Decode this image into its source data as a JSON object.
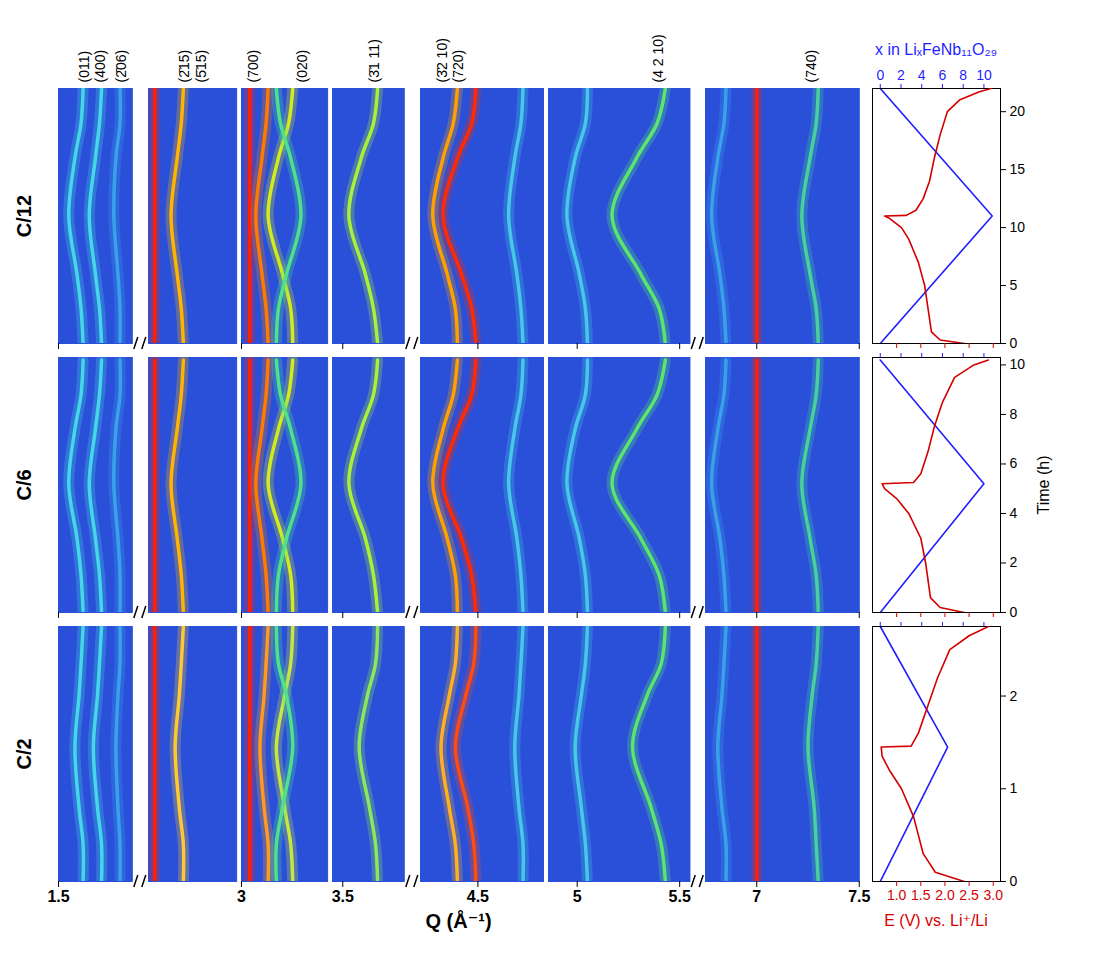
{
  "chart_data": {
    "type": "heatmap_traces",
    "xlabel": "Q (Å⁻¹)",
    "x_segments": [
      {
        "xlim": [
          1.5,
          1.86
        ],
        "xticks": [
          1.5
        ]
      },
      {
        "xlim": [
          2.55,
          2.98
        ],
        "xticks": []
      },
      {
        "xlim": [
          3.0,
          3.42
        ],
        "xticks": [
          3
        ]
      },
      {
        "xlim": [
          3.45,
          3.8
        ],
        "xticks": [
          3.5
        ]
      },
      {
        "xlim": [
          4.22,
          4.82
        ],
        "xticks": [
          4.5
        ]
      },
      {
        "xlim": [
          4.86,
          5.55
        ],
        "xticks": [
          5,
          5.5
        ]
      },
      {
        "xlim": [
          6.75,
          7.5
        ],
        "xticks": [
          7,
          7.5
        ]
      }
    ],
    "peak_labels": [
      {
        "label": "(011)",
        "q": 1.6
      },
      {
        "label": "(400)",
        "q": 1.68
      },
      {
        "label": "(2̄06)",
        "q": 1.78
      },
      {
        "label": "(2̄15)",
        "q": 2.7
      },
      {
        "label": "(5̄15)",
        "q": 2.78
      },
      {
        "label": "(700)",
        "q": 3.03
      },
      {
        "label": "(020)",
        "q": 3.27
      },
      {
        "label": "(3̄1 11)",
        "q": 3.63
      },
      {
        "label": "(3̄2 10)",
        "q": 4.3
      },
      {
        "label": "(720)",
        "q": 4.38
      },
      {
        "label": "(4 2 10)",
        "q": 5.37
      },
      {
        "label": "(740)",
        "q": 7.24
      }
    ],
    "ylabel": "Time (h)",
    "x_top": {
      "label": "x in LiₓFeNb₁₁O₂₉",
      "color": "#1f1fff",
      "xlim": [
        -0.75,
        11.6
      ],
      "xticks": [
        0,
        2,
        4,
        6,
        8,
        10
      ]
    },
    "x_bottom": {
      "label": "E (V) vs. Li⁺/Li",
      "color": "#d40000",
      "xlim": [
        0.5,
        3.15
      ],
      "xticks": [
        {
          "value": 1,
          "label": "1.0"
        },
        1.5,
        {
          "value": 2,
          "label": "2.0"
        },
        2.5,
        {
          "value": 3,
          "label": "3.0"
        }
      ]
    },
    "panels": [
      {
        "title": "C/12",
        "ylim": [
          0,
          22
        ],
        "yticks": [
          0,
          5,
          10,
          15,
          20
        ],
        "time": [
          0,
          3,
          6,
          11,
          16,
          19,
          22
        ],
        "peaks": [
          {
            "color": "#46d7e6",
            "q": [
              1.62,
              1.61,
              1.59,
              1.55,
              1.58,
              1.61,
              1.62
            ]
          },
          {
            "color": "#46d7e6",
            "q": [
              1.71,
              1.7,
              1.68,
              1.65,
              1.68,
              1.7,
              1.71
            ]
          },
          {
            "color": "#3aa0ea",
            "q": [
              1.8,
              1.8,
              1.79,
              1.77,
              1.78,
              1.8,
              1.8
            ]
          },
          {
            "color": "#ffb400",
            "q": [
              2.72,
              2.71,
              2.69,
              2.66,
              2.69,
              2.71,
              2.72
            ]
          },
          {
            "color": "#ff2000",
            "q": [
              2.58,
              2.58,
              2.58,
              2.58,
              2.58,
              2.58,
              2.58
            ]
          },
          {
            "color": "#ff2000",
            "q": [
              3.04,
              3.04,
              3.04,
              3.04,
              3.04,
              3.04,
              3.04
            ]
          },
          {
            "color": "#ff7a00",
            "q": [
              3.13,
              3.12,
              3.1,
              3.07,
              3.1,
              3.12,
              3.13
            ]
          },
          {
            "color": "#d2ea1e",
            "q": [
              3.25,
              3.24,
              3.2,
              3.13,
              3.18,
              3.23,
              3.25
            ]
          },
          {
            "color": "#4fe08c",
            "q": [
              3.17,
              3.18,
              3.22,
              3.29,
              3.24,
              3.19,
              3.17
            ]
          },
          {
            "color": "#a8f03a",
            "q": [
              3.67,
              3.65,
              3.61,
              3.53,
              3.59,
              3.65,
              3.67
            ]
          },
          {
            "color": "#ff2a00",
            "q": [
              4.49,
              4.47,
              4.42,
              4.33,
              4.4,
              4.47,
              4.49
            ]
          },
          {
            "color": "#ffa000",
            "q": [
              4.4,
              4.39,
              4.35,
              4.28,
              4.33,
              4.38,
              4.4
            ]
          },
          {
            "color": "#46c8e6",
            "q": [
              4.72,
              4.71,
              4.69,
              4.65,
              4.68,
              4.71,
              4.72
            ]
          },
          {
            "color": "#5ae66e",
            "q": [
              5.43,
              5.4,
              5.31,
              5.17,
              5.29,
              5.39,
              5.43
            ]
          },
          {
            "color": "#46c8e6",
            "q": [
              5.05,
              5.04,
              5.01,
              4.95,
              4.99,
              5.04,
              5.05
            ]
          },
          {
            "color": "#ff2000",
            "q": [
              7.0,
              7.0,
              7.0,
              7.0,
              7.0,
              7.0,
              7.0
            ]
          },
          {
            "color": "#46d29a",
            "q": [
              7.3,
              7.29,
              7.26,
              7.22,
              7.26,
              7.29,
              7.3
            ]
          },
          {
            "color": "#3aa0ea",
            "q": [
              6.85,
              6.84,
              6.82,
              6.78,
              6.81,
              6.84,
              6.85
            ]
          }
        ],
        "x_content": {
          "time": [
            0,
            11,
            22
          ],
          "values": [
            0,
            10.8,
            0
          ]
        },
        "voltage": {
          "time": [
            0,
            0.3,
            1,
            3,
            5,
            7,
            9,
            10,
            10.8,
            11,
            11.05,
            11.5,
            12.5,
            14,
            16,
            18,
            20,
            21,
            21.7,
            22
          ],
          "values": [
            2.4,
            1.9,
            1.72,
            1.65,
            1.58,
            1.45,
            1.25,
            1.1,
            0.85,
            0.75,
            1.2,
            1.4,
            1.55,
            1.68,
            1.78,
            1.9,
            2.05,
            2.3,
            2.7,
            2.95
          ]
        }
      },
      {
        "title": "C/6",
        "ylim": [
          0,
          10.3
        ],
        "yticks": [
          0,
          2,
          4,
          6,
          8,
          10
        ],
        "time": [
          0,
          1.5,
          3,
          5.2,
          7.4,
          8.8,
          10.2
        ],
        "peaks": [
          {
            "color": "#46d7e6",
            "q": [
              1.62,
              1.61,
              1.59,
              1.55,
              1.58,
              1.61,
              1.62
            ]
          },
          {
            "color": "#46d7e6",
            "q": [
              1.71,
              1.7,
              1.68,
              1.65,
              1.68,
              1.7,
              1.71
            ]
          },
          {
            "color": "#3aa0ea",
            "q": [
              1.8,
              1.8,
              1.79,
              1.77,
              1.78,
              1.8,
              1.8
            ]
          },
          {
            "color": "#ffb400",
            "q": [
              2.72,
              2.71,
              2.69,
              2.66,
              2.69,
              2.71,
              2.72
            ]
          },
          {
            "color": "#ff2000",
            "q": [
              2.58,
              2.58,
              2.58,
              2.58,
              2.58,
              2.58,
              2.58
            ]
          },
          {
            "color": "#ff2000",
            "q": [
              3.04,
              3.04,
              3.04,
              3.04,
              3.04,
              3.04,
              3.04
            ]
          },
          {
            "color": "#ff7a00",
            "q": [
              3.13,
              3.12,
              3.1,
              3.07,
              3.1,
              3.12,
              3.13
            ]
          },
          {
            "color": "#d2ea1e",
            "q": [
              3.25,
              3.24,
              3.2,
              3.13,
              3.18,
              3.23,
              3.25
            ]
          },
          {
            "color": "#4fe08c",
            "q": [
              3.17,
              3.18,
              3.22,
              3.29,
              3.24,
              3.19,
              3.17
            ]
          },
          {
            "color": "#a8f03a",
            "q": [
              3.67,
              3.65,
              3.61,
              3.53,
              3.59,
              3.65,
              3.67
            ]
          },
          {
            "color": "#ff2a00",
            "q": [
              4.49,
              4.47,
              4.42,
              4.33,
              4.4,
              4.47,
              4.49
            ]
          },
          {
            "color": "#ffa000",
            "q": [
              4.4,
              4.39,
              4.35,
              4.28,
              4.33,
              4.38,
              4.4
            ]
          },
          {
            "color": "#46c8e6",
            "q": [
              4.72,
              4.71,
              4.69,
              4.65,
              4.68,
              4.71,
              4.72
            ]
          },
          {
            "color": "#5ae66e",
            "q": [
              5.43,
              5.4,
              5.31,
              5.17,
              5.29,
              5.39,
              5.43
            ]
          },
          {
            "color": "#46c8e6",
            "q": [
              5.05,
              5.04,
              5.01,
              4.95,
              4.99,
              5.04,
              5.05
            ]
          },
          {
            "color": "#ff2000",
            "q": [
              7.0,
              7.0,
              7.0,
              7.0,
              7.0,
              7.0,
              7.0
            ]
          },
          {
            "color": "#46d29a",
            "q": [
              7.3,
              7.29,
              7.26,
              7.22,
              7.26,
              7.29,
              7.3
            ]
          },
          {
            "color": "#3aa0ea",
            "q": [
              6.85,
              6.84,
              6.82,
              6.78,
              6.81,
              6.84,
              6.85
            ]
          }
        ],
        "x_content": {
          "time": [
            0,
            5.2,
            10.2
          ],
          "values": [
            0,
            10.0,
            0
          ]
        },
        "voltage": {
          "time": [
            0,
            0.2,
            0.6,
            2,
            3,
            4,
            4.6,
            5,
            5.2,
            5.25,
            5.6,
            6.5,
            7.5,
            8.5,
            9.5,
            10,
            10.2
          ],
          "values": [
            2.4,
            1.9,
            1.7,
            1.6,
            1.5,
            1.25,
            1.0,
            0.75,
            0.7,
            1.35,
            1.5,
            1.65,
            1.78,
            1.95,
            2.2,
            2.6,
            2.9
          ]
        }
      },
      {
        "title": "C/2",
        "ylim": [
          0,
          2.75
        ],
        "yticks": [
          0,
          1,
          2
        ],
        "time": [
          0,
          0.4,
          0.8,
          1.45,
          2.0,
          2.35,
          2.75
        ],
        "peaks": [
          {
            "color": "#46d7e6",
            "q": [
              1.62,
              1.62,
              1.6,
              1.58,
              1.6,
              1.61,
              1.62
            ]
          },
          {
            "color": "#46d7e6",
            "q": [
              1.71,
              1.71,
              1.69,
              1.67,
              1.69,
              1.7,
              1.71
            ]
          },
          {
            "color": "#3aa0ea",
            "q": [
              1.8,
              1.8,
              1.79,
              1.78,
              1.79,
              1.8,
              1.8
            ]
          },
          {
            "color": "#ffc830",
            "q": [
              2.72,
              2.72,
              2.7,
              2.68,
              2.7,
              2.71,
              2.72
            ]
          },
          {
            "color": "#ff2000",
            "q": [
              2.58,
              2.58,
              2.58,
              2.58,
              2.58,
              2.58,
              2.58
            ]
          },
          {
            "color": "#ff2000",
            "q": [
              3.04,
              3.04,
              3.04,
              3.04,
              3.04,
              3.04,
              3.04
            ]
          },
          {
            "color": "#ff9a20",
            "q": [
              3.13,
              3.13,
              3.11,
              3.09,
              3.11,
              3.12,
              3.13
            ]
          },
          {
            "color": "#c8e640",
            "q": [
              3.25,
              3.24,
              3.21,
              3.17,
              3.21,
              3.24,
              3.25
            ]
          },
          {
            "color": "#4fe08c",
            "q": [
              3.17,
              3.17,
              3.2,
              3.25,
              3.22,
              3.18,
              3.17
            ]
          },
          {
            "color": "#8ce85a",
            "q": [
              3.67,
              3.66,
              3.63,
              3.58,
              3.62,
              3.66,
              3.67
            ]
          },
          {
            "color": "#ff4a10",
            "q": [
              4.49,
              4.48,
              4.45,
              4.39,
              4.44,
              4.48,
              4.49
            ]
          },
          {
            "color": "#ffb020",
            "q": [
              4.4,
              4.39,
              4.36,
              4.32,
              4.36,
              4.39,
              4.4
            ]
          },
          {
            "color": "#46c8e6",
            "q": [
              4.72,
              4.72,
              4.7,
              4.68,
              4.7,
              4.71,
              4.72
            ]
          },
          {
            "color": "#5ae66e",
            "q": [
              5.43,
              5.41,
              5.36,
              5.27,
              5.34,
              5.41,
              5.43
            ]
          },
          {
            "color": "#46c8e6",
            "q": [
              5.05,
              5.04,
              5.02,
              4.99,
              5.02,
              5.04,
              5.05
            ]
          },
          {
            "color": "#ff2000",
            "q": [
              7.0,
              7.0,
              7.0,
              7.0,
              7.0,
              7.0,
              7.0
            ]
          },
          {
            "color": "#46d29a",
            "q": [
              7.3,
              7.29,
              7.28,
              7.25,
              7.27,
              7.29,
              7.3
            ]
          },
          {
            "color": "#3aa0ea",
            "q": [
              6.85,
              6.85,
              6.83,
              6.81,
              6.83,
              6.84,
              6.85
            ]
          }
        ],
        "x_content": {
          "time": [
            0,
            1.45,
            2.75
          ],
          "values": [
            0,
            6.5,
            0
          ]
        },
        "voltage": {
          "time": [
            0,
            0.1,
            0.3,
            0.7,
            1.0,
            1.2,
            1.35,
            1.45,
            1.46,
            1.6,
            1.9,
            2.2,
            2.5,
            2.65,
            2.75
          ],
          "values": [
            2.4,
            1.8,
            1.55,
            1.35,
            1.1,
            0.85,
            0.7,
            0.68,
            1.3,
            1.45,
            1.65,
            1.85,
            2.1,
            2.5,
            2.9
          ]
        }
      }
    ]
  }
}
